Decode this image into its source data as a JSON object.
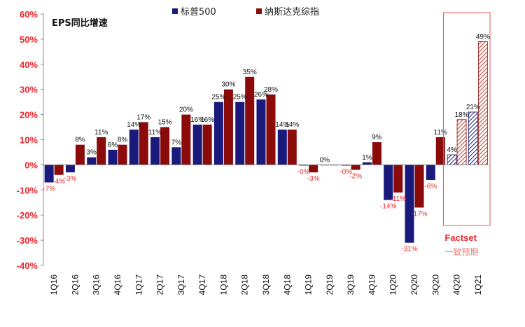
{
  "chart_data": {
    "type": "bar",
    "inner_title": "EPS同比增速",
    "categories": [
      "1Q16",
      "2Q16",
      "3Q16",
      "4Q16",
      "1Q17",
      "2Q17",
      "3Q17",
      "4Q17",
      "1Q18",
      "2Q18",
      "3Q18",
      "4Q18",
      "1Q19",
      "2Q19",
      "3Q19",
      "4Q19",
      "1Q20",
      "2Q20",
      "3Q20",
      "4Q20",
      "1Q21"
    ],
    "series": [
      {
        "name": "标普500",
        "color": "#1a1a7c",
        "values": [
          -7,
          -3,
          3,
          6,
          14,
          11,
          7,
          16,
          25,
          25,
          26,
          14,
          -0.3,
          0,
          -0.3,
          1,
          -14,
          -31,
          -6,
          4,
          21
        ],
        "labels": [
          "-7%",
          "-3%",
          "3%",
          "6%",
          "14%",
          "11%",
          "7%",
          "16%",
          "25%",
          "25%",
          "26%",
          "14%",
          "-0%",
          "0%",
          "-0%",
          "1%",
          "-14%",
          "-31%",
          "-6%",
          "4%",
          "21%"
        ]
      },
      {
        "name": "纳斯达克综指",
        "color": "#8b0a0a",
        "values": [
          -4,
          8,
          11,
          8,
          17,
          15,
          20,
          16,
          30,
          35,
          28,
          14,
          -3,
          0,
          -2,
          9,
          -11,
          -17,
          11,
          18,
          49
        ],
        "labels": [
          "-4%",
          "8%",
          "11%",
          "8%",
          "17%",
          "15%",
          "20%",
          "16%",
          "30%",
          "35%",
          "28%",
          "14%",
          "-3%",
          "",
          "-2%",
          "9%",
          "-11%",
          "-17%",
          "11%",
          "18%",
          "49%"
        ]
      }
    ],
    "estimate_start_index": 19,
    "estimate_note": [
      "Factset",
      "一致预期"
    ],
    "yticks": [
      "60%",
      "50%",
      "40%",
      "30%",
      "20%",
      "10%",
      "0%",
      "-10%",
      "-20%",
      "-30%",
      "-40%"
    ],
    "ylim": [
      -40,
      60
    ],
    "label_color_negative": "#e8262b",
    "axis_tick_color": "#e8262b",
    "estimate_box_color": "#e85050"
  }
}
